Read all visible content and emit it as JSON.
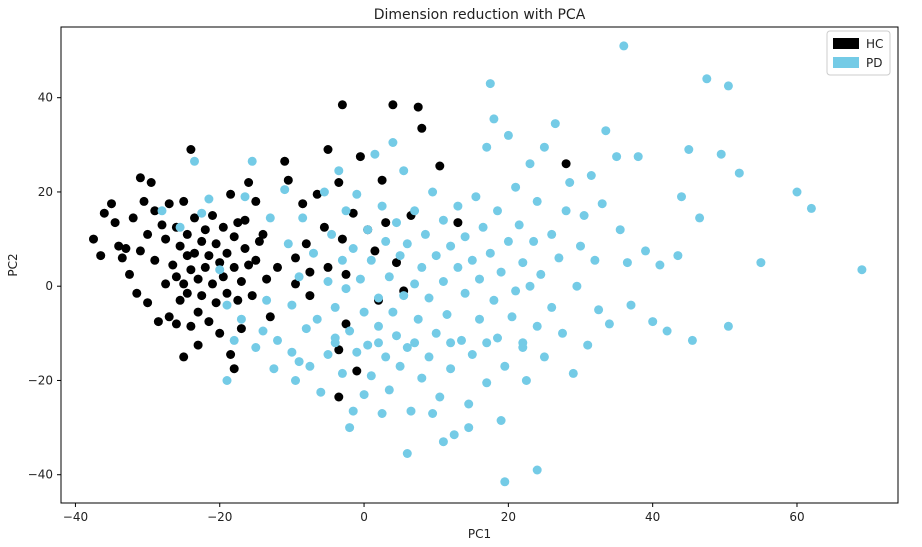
{
  "chart_data": {
    "type": "scatter",
    "title": "Dimension reduction with PCA",
    "xlabel": "PC1",
    "ylabel": "PC2",
    "xlim": [
      -42,
      74
    ],
    "ylim": [
      -46,
      55
    ],
    "xticks": [
      -40,
      -20,
      0,
      20,
      40,
      60
    ],
    "yticks": [
      -40,
      -20,
      0,
      20,
      40
    ],
    "grid": false,
    "legend_position": "top-right",
    "series": [
      {
        "name": "HC",
        "color": "#000000",
        "points": [
          [
            -37.5,
            10
          ],
          [
            -36.5,
            6.5
          ],
          [
            -36,
            15.5
          ],
          [
            -35,
            17.5
          ],
          [
            -34.5,
            13.5
          ],
          [
            -34,
            8.5
          ],
          [
            -33.5,
            6
          ],
          [
            -33,
            8
          ],
          [
            -32.5,
            2.5
          ],
          [
            -32,
            14.5
          ],
          [
            -31.5,
            -1.5
          ],
          [
            -31,
            23
          ],
          [
            -31,
            7.5
          ],
          [
            -30.5,
            18
          ],
          [
            -30,
            11
          ],
          [
            -30,
            -3.5
          ],
          [
            -29.5,
            22
          ],
          [
            -29,
            16
          ],
          [
            -29,
            5.5
          ],
          [
            -28.5,
            -7.5
          ],
          [
            -28,
            13
          ],
          [
            -27.5,
            10
          ],
          [
            -27.5,
            0.5
          ],
          [
            -27,
            17.5
          ],
          [
            -27,
            -6.5
          ],
          [
            -26.5,
            4.5
          ],
          [
            -26,
            12.5
          ],
          [
            -26,
            2
          ],
          [
            -26,
            -8
          ],
          [
            -25.5,
            8.5
          ],
          [
            -25.5,
            -3
          ],
          [
            -25,
            18
          ],
          [
            -25,
            0.5
          ],
          [
            -25,
            -15
          ],
          [
            -24.5,
            6.5
          ],
          [
            -24.5,
            11
          ],
          [
            -24.5,
            -1.5
          ],
          [
            -24,
            29
          ],
          [
            -24,
            3.5
          ],
          [
            -24,
            -8.5
          ],
          [
            -23.5,
            14.5
          ],
          [
            -23.5,
            7
          ],
          [
            -23,
            -5.5
          ],
          [
            -23,
            1.5
          ],
          [
            -23,
            -12.5
          ],
          [
            -22.5,
            9.5
          ],
          [
            -22.5,
            -2
          ],
          [
            -22,
            4
          ],
          [
            -22,
            12
          ],
          [
            -21.5,
            -7.5
          ],
          [
            -21.5,
            6.5
          ],
          [
            -21,
            0.5
          ],
          [
            -21,
            15
          ],
          [
            -20.5,
            9
          ],
          [
            -20.5,
            -3.5
          ],
          [
            -20,
            5
          ],
          [
            -20,
            -10
          ],
          [
            -19.5,
            2
          ],
          [
            -19.5,
            12.5
          ],
          [
            -19,
            -1.5
          ],
          [
            -19,
            7
          ],
          [
            -18.5,
            19.5
          ],
          [
            -18.5,
            -14.5
          ],
          [
            -18,
            4
          ],
          [
            -18,
            10.5
          ],
          [
            -17.5,
            -3
          ],
          [
            -17.5,
            13.5
          ],
          [
            -17,
            1
          ],
          [
            -17,
            -9
          ],
          [
            -16.5,
            8
          ],
          [
            -16.5,
            14
          ],
          [
            -16,
            22
          ],
          [
            -16,
            4.5
          ],
          [
            -15.5,
            -2
          ],
          [
            -15,
            5.5
          ],
          [
            -15,
            18
          ],
          [
            -14.5,
            9.5
          ],
          [
            -14,
            11
          ],
          [
            -13.5,
            1.5
          ],
          [
            -13,
            -6.5
          ],
          [
            -12,
            4
          ],
          [
            -11,
            26.5
          ],
          [
            -10.5,
            22.5
          ],
          [
            -9.5,
            6
          ],
          [
            -9.5,
            0.5
          ],
          [
            -8.5,
            17.5
          ],
          [
            -8,
            9
          ],
          [
            -7.5,
            3
          ],
          [
            -7.5,
            -2
          ],
          [
            -6.5,
            19.5
          ],
          [
            -5.5,
            12.5
          ],
          [
            -5,
            29
          ],
          [
            -5,
            4
          ],
          [
            -3.5,
            -13.5
          ],
          [
            -3.5,
            22
          ],
          [
            -3,
            10
          ],
          [
            -3,
            38.5
          ],
          [
            -2.5,
            2.5
          ],
          [
            -2.5,
            -8
          ],
          [
            -1.5,
            15.5
          ],
          [
            -1,
            -18
          ],
          [
            -0.5,
            27.5
          ],
          [
            0.5,
            12
          ],
          [
            1.5,
            7.5
          ],
          [
            2,
            -3
          ],
          [
            2.5,
            22.5
          ],
          [
            3,
            13.5
          ],
          [
            4,
            38.5
          ],
          [
            4.5,
            5
          ],
          [
            5.5,
            -1
          ],
          [
            6.5,
            15
          ],
          [
            7.5,
            38
          ],
          [
            8,
            33.5
          ],
          [
            10.5,
            25.5
          ],
          [
            13,
            13.5
          ],
          [
            28,
            26
          ],
          [
            -3.5,
            -23.5
          ],
          [
            -18,
            -17.5
          ]
        ]
      },
      {
        "name": "PD",
        "color": "#74cbe6",
        "points": [
          [
            -23.5,
            26.5
          ],
          [
            -28,
            16
          ],
          [
            -25.5,
            12.5
          ],
          [
            -22.5,
            15.5
          ],
          [
            -21.5,
            18.5
          ],
          [
            -20,
            3.5
          ],
          [
            -19,
            -4
          ],
          [
            -18,
            -11.5
          ],
          [
            -17,
            -7
          ],
          [
            -16.5,
            19
          ],
          [
            -15.5,
            26.5
          ],
          [
            -15,
            -13
          ],
          [
            -14,
            -9.5
          ],
          [
            -13.5,
            -3
          ],
          [
            -13,
            14.5
          ],
          [
            -12.5,
            -17.5
          ],
          [
            -12,
            -11.5
          ],
          [
            -11,
            20.5
          ],
          [
            -10.5,
            9
          ],
          [
            -10,
            -4
          ],
          [
            -10,
            -14
          ],
          [
            -9.5,
            -20
          ],
          [
            -9,
            2
          ],
          [
            -8.5,
            14.5
          ],
          [
            -8,
            -9
          ],
          [
            -7.5,
            -17
          ],
          [
            -7,
            7
          ],
          [
            -6.5,
            -7
          ],
          [
            -6,
            -22.5
          ],
          [
            -5.5,
            20
          ],
          [
            -5,
            1
          ],
          [
            -5,
            -14.5
          ],
          [
            -4.5,
            11
          ],
          [
            -4,
            -4.5
          ],
          [
            -4,
            -11
          ],
          [
            -3.5,
            24.5
          ],
          [
            -3,
            5.5
          ],
          [
            -3,
            -18.5
          ],
          [
            -2.5,
            16
          ],
          [
            -2.5,
            -0.5
          ],
          [
            -2,
            -9.5
          ],
          [
            -1.5,
            8
          ],
          [
            -1.5,
            -26.5
          ],
          [
            -1,
            -14
          ],
          [
            -1,
            19.5
          ],
          [
            -0.5,
            1.5
          ],
          [
            0,
            -5.5
          ],
          [
            0,
            -23
          ],
          [
            0.5,
            12
          ],
          [
            0.5,
            -12.5
          ],
          [
            1,
            5.5
          ],
          [
            1,
            -19
          ],
          [
            1.5,
            28
          ],
          [
            2,
            -2.5
          ],
          [
            2,
            -8.5
          ],
          [
            2.5,
            17
          ],
          [
            2.5,
            -27
          ],
          [
            3,
            9.5
          ],
          [
            3,
            -15
          ],
          [
            3.5,
            2
          ],
          [
            3.5,
            -22
          ],
          [
            4,
            30.5
          ],
          [
            4,
            -5.5
          ],
          [
            4.5,
            13.5
          ],
          [
            4.5,
            -10.5
          ],
          [
            5,
            6.5
          ],
          [
            5,
            -17
          ],
          [
            5.5,
            -2
          ],
          [
            5.5,
            24.5
          ],
          [
            6,
            9
          ],
          [
            6,
            -13
          ],
          [
            6.5,
            -26.5
          ],
          [
            7,
            16
          ],
          [
            7,
            0.5
          ],
          [
            7.5,
            -7
          ],
          [
            8,
            4
          ],
          [
            8,
            -19.5
          ],
          [
            8.5,
            11
          ],
          [
            9,
            -2.5
          ],
          [
            9,
            -15
          ],
          [
            9.5,
            20
          ],
          [
            10,
            6.5
          ],
          [
            10,
            -10
          ],
          [
            10.5,
            -23.5
          ],
          [
            11,
            14
          ],
          [
            11,
            1
          ],
          [
            11.5,
            -6
          ],
          [
            12,
            8.5
          ],
          [
            12,
            -17.5
          ],
          [
            12.5,
            -31.5
          ],
          [
            13,
            4
          ],
          [
            13,
            17
          ],
          [
            13.5,
            -11.5
          ],
          [
            14,
            -1.5
          ],
          [
            14,
            10.5
          ],
          [
            14.5,
            -25
          ],
          [
            15,
            5.5
          ],
          [
            15,
            -14.5
          ],
          [
            15.5,
            19
          ],
          [
            16,
            -7
          ],
          [
            16,
            1.5
          ],
          [
            16.5,
            12.5
          ],
          [
            17,
            29.5
          ],
          [
            17,
            -20.5
          ],
          [
            17.5,
            43
          ],
          [
            17.5,
            7
          ],
          [
            18,
            -3
          ],
          [
            18,
            35.5
          ],
          [
            18.5,
            -11
          ],
          [
            18.5,
            16
          ],
          [
            19,
            3
          ],
          [
            19,
            -28.5
          ],
          [
            19.5,
            -17
          ],
          [
            19.5,
            -41.5
          ],
          [
            20,
            9.5
          ],
          [
            20,
            32
          ],
          [
            20.5,
            -6.5
          ],
          [
            21,
            21
          ],
          [
            21,
            -1
          ],
          [
            21.5,
            13
          ],
          [
            22,
            -13
          ],
          [
            22,
            5
          ],
          [
            22.5,
            -20
          ],
          [
            23,
            26
          ],
          [
            23,
            0
          ],
          [
            23.5,
            9.5
          ],
          [
            24,
            -8.5
          ],
          [
            24,
            18
          ],
          [
            24,
            -39
          ],
          [
            24.5,
            2.5
          ],
          [
            25,
            29.5
          ],
          [
            25,
            -15
          ],
          [
            26,
            11
          ],
          [
            26,
            -4.5
          ],
          [
            26.5,
            34.5
          ],
          [
            27,
            6
          ],
          [
            27.5,
            -10
          ],
          [
            28,
            16
          ],
          [
            28.5,
            22
          ],
          [
            29,
            -18.5
          ],
          [
            29.5,
            0
          ],
          [
            30,
            8.5
          ],
          [
            30.5,
            15
          ],
          [
            31,
            -12.5
          ],
          [
            31.5,
            23.5
          ],
          [
            32,
            5.5
          ],
          [
            32.5,
            -5
          ],
          [
            33,
            17.5
          ],
          [
            33.5,
            33
          ],
          [
            34,
            -8
          ],
          [
            35,
            27.5
          ],
          [
            35.5,
            12
          ],
          [
            36,
            51
          ],
          [
            36.5,
            5
          ],
          [
            37,
            -4
          ],
          [
            38,
            27.5
          ],
          [
            39,
            7.5
          ],
          [
            40,
            -7.5
          ],
          [
            41,
            4.5
          ],
          [
            42,
            -9.5
          ],
          [
            43.5,
            6.5
          ],
          [
            44,
            19
          ],
          [
            45,
            29
          ],
          [
            45.5,
            -11.5
          ],
          [
            46.5,
            14.5
          ],
          [
            47.5,
            44
          ],
          [
            49.5,
            28
          ],
          [
            50.5,
            42.5
          ],
          [
            50.5,
            -8.5
          ],
          [
            52,
            24
          ],
          [
            55,
            5
          ],
          [
            60,
            20
          ],
          [
            62,
            16.5
          ],
          [
            69,
            3.5
          ],
          [
            -19,
            -20
          ],
          [
            -9,
            -16
          ],
          [
            -4,
            -12
          ],
          [
            2,
            -12
          ],
          [
            7,
            -12
          ],
          [
            12,
            -12
          ],
          [
            17,
            -12
          ],
          [
            22,
            -12
          ],
          [
            6,
            -35.5
          ],
          [
            9.5,
            -27
          ],
          [
            -2,
            -30
          ],
          [
            14.5,
            -30
          ],
          [
            11,
            -33
          ]
        ]
      }
    ]
  }
}
